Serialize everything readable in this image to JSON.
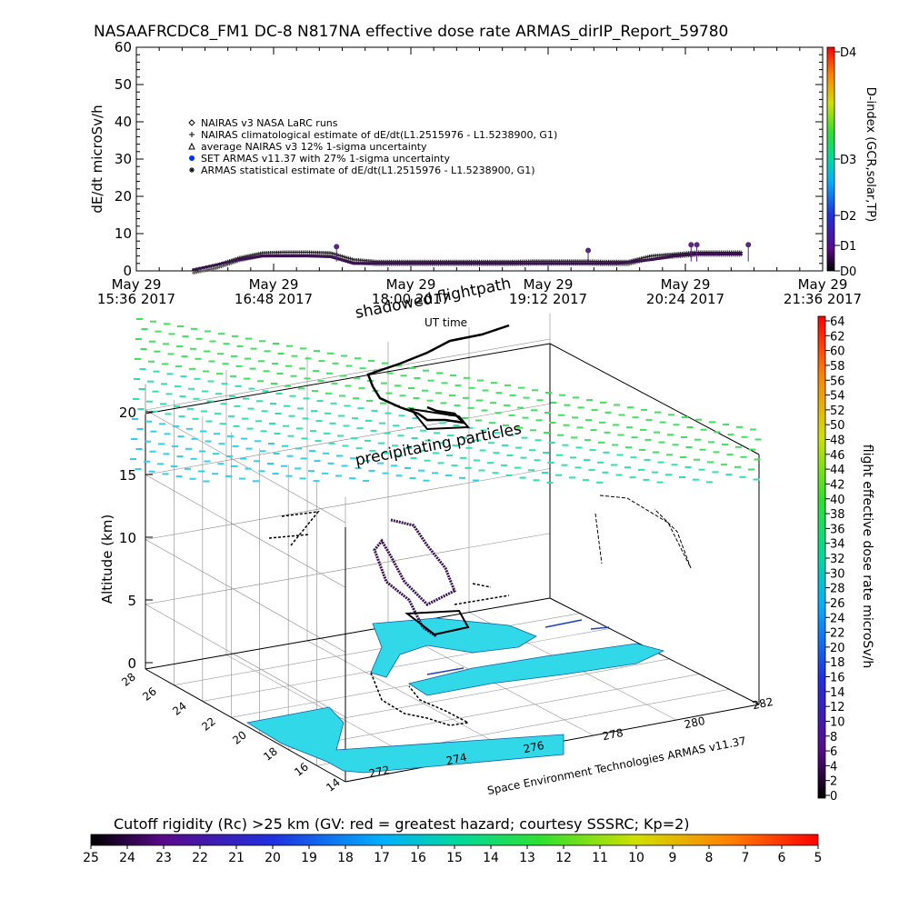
{
  "title": "NASAAFRCDC8_FM1 DC-8    N817NA effective dose rate ARMAS_dirIP_Report_59780",
  "chart_data": [
    {
      "type": "scatter",
      "ylabel": "dE/dt microSv/h",
      "xlabel": "UT time",
      "ylim": [
        0,
        60
      ],
      "yticks": [
        "0",
        "10",
        "20",
        "30",
        "40",
        "50",
        "60"
      ],
      "xticks": [
        {
          "line1": "May 29",
          "line2": "15:36 2017"
        },
        {
          "line1": "May 29",
          "line2": "16:48 2017"
        },
        {
          "line1": "May 29",
          "line2": "18:00 2017"
        },
        {
          "line1": "May 29",
          "line2": "19:12 2017"
        },
        {
          "line1": "May 29",
          "line2": "20:24 2017"
        },
        {
          "line1": "May 29",
          "line2": "21:36 2017"
        }
      ],
      "xlim_hours": [
        15.6,
        21.6
      ],
      "legend": [
        {
          "symbol": "diamond",
          "label": "NAIRAS v3 NASA LaRC runs"
        },
        {
          "symbol": "plus",
          "label": "NAIRAS climatological estimate of dE/dt(L1.2515976 - L1.5238900, G1)"
        },
        {
          "symbol": "triangle",
          "label": "average NAIRAS v3 12% 1-sigma uncertainty"
        },
        {
          "symbol": "blue-dot",
          "label": "SET ARMAS v11.37 with 27% 1-sigma uncertainty"
        },
        {
          "symbol": "asterisk",
          "label": "ARMAS statistical estimate of dE/dt(L1.2515976 - L1.5238900, G1)"
        }
      ],
      "series": [
        {
          "name": "NAIRAS climatological estimate",
          "x": [
            16.1,
            16.3,
            16.5,
            16.7,
            16.9,
            17.1,
            17.3,
            17.5,
            17.7,
            17.9,
            18.1,
            18.3,
            18.5,
            18.7,
            18.9,
            19.1,
            19.3,
            19.5,
            19.7,
            19.9,
            20.1,
            20.3,
            20.5,
            20.7,
            20.9
          ],
          "y": [
            0.2,
            1.5,
            3.5,
            4.8,
            5.0,
            5.0,
            4.8,
            3.0,
            2.5,
            2.5,
            2.5,
            2.5,
            2.5,
            2.5,
            2.5,
            2.6,
            2.6,
            2.6,
            2.5,
            2.5,
            4.0,
            4.5,
            5.0,
            5.0,
            5.0
          ]
        },
        {
          "name": "NAIRAS v3 NASA LaRC runs",
          "x": [
            16.1,
            16.5,
            16.7,
            16.9,
            17.1,
            17.3,
            17.5,
            17.7,
            18.0,
            18.3,
            18.6,
            18.9,
            19.2,
            19.5,
            19.8,
            20.1,
            20.3,
            20.5,
            20.7,
            20.9
          ],
          "y": [
            0.3,
            3.0,
            4.0,
            4.0,
            4.0,
            3.8,
            2.0,
            2.0,
            2.0,
            2.0,
            2.0,
            2.0,
            2.0,
            2.0,
            2.0,
            3.0,
            4.0,
            4.5,
            4.5,
            4.5
          ]
        },
        {
          "name": "SET ARMAS v11.37",
          "x": [
            17.35,
            19.55,
            20.45,
            20.5,
            20.95
          ],
          "y": [
            6.5,
            5.5,
            7.0,
            7.0,
            7.0
          ]
        }
      ],
      "right_axis": {
        "label": "D-index (GCR,solar,TP)",
        "ticks": [
          "D0",
          "D1",
          "D2",
          "D3",
          "D4"
        ]
      }
    },
    {
      "type": "scatter3d",
      "zlabel": "Altitude (km)",
      "zticks": [
        "0",
        "5",
        "10",
        "15",
        "20"
      ],
      "xticks": [
        "272",
        "274",
        "276",
        "278",
        "280",
        "282"
      ],
      "yticks": [
        "14",
        "16",
        "18",
        "20",
        "22",
        "24",
        "26",
        "28"
      ],
      "annotations": [
        "shadowed flightpath",
        "precipitating particles"
      ],
      "credit": "Space Environment Technologies ARMAS v11.37",
      "colorbar": {
        "label": "flight effective dose rate microSv/h",
        "ticks": [
          "0",
          "2",
          "4",
          "6",
          "8",
          "10",
          "12",
          "14",
          "16",
          "18",
          "20",
          "22",
          "24",
          "26",
          "28",
          "30",
          "32",
          "34",
          "36",
          "38",
          "40",
          "42",
          "44",
          "46",
          "48",
          "50",
          "52",
          "54",
          "56",
          "58",
          "60",
          "62",
          "64"
        ]
      }
    }
  ],
  "cutoff": {
    "label": "Cutoff rigidity (Rc) >25 km (GV: red = greatest hazard; courtesy SSSRC; Kp=2)",
    "ticks": [
      "25",
      "24",
      "23",
      "22",
      "21",
      "20",
      "19",
      "18",
      "17",
      "16",
      "15",
      "14",
      "13",
      "12",
      "11",
      "10",
      "9",
      "8",
      "7",
      "6",
      "5"
    ]
  }
}
